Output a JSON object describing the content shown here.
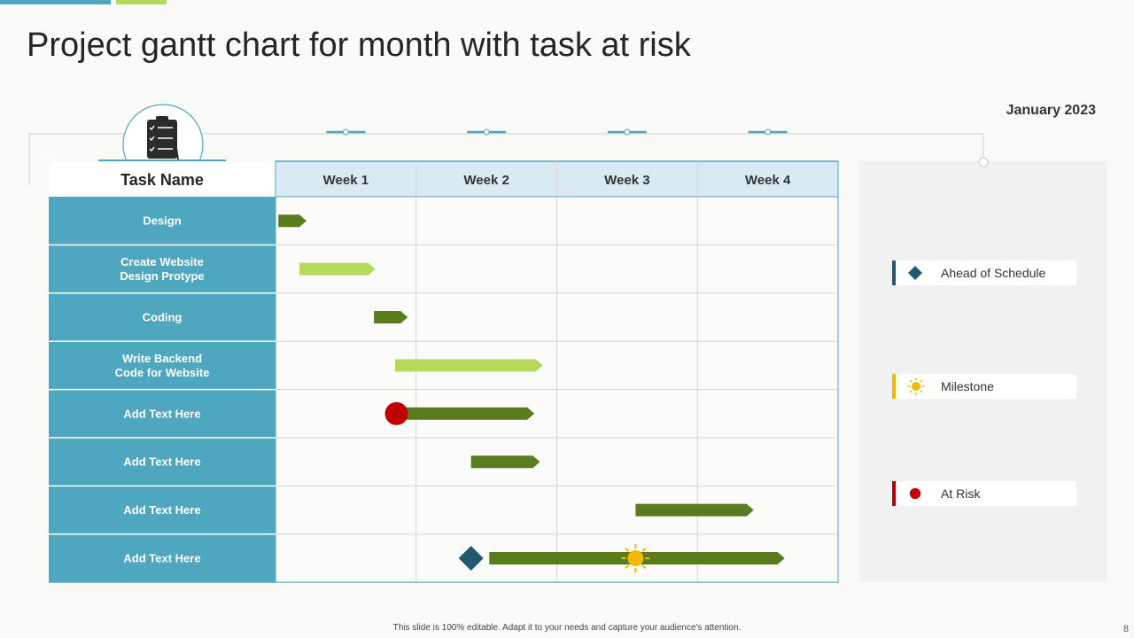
{
  "title": "Project gantt chart for month with task at risk",
  "month_label": "January 2023",
  "footer_note": "This slide is 100% editable. Adapt it to your needs and capture your audience's attention.",
  "page_number": "8",
  "colors": {
    "accent_blue": "#4fa6bf",
    "header_blue": "#d9eaf2",
    "bar_dark": "#5b7b1f",
    "bar_light": "#b5d95a",
    "ahead": "#215a6e",
    "milestone": "#f5b800",
    "risk": "#c00000"
  },
  "icons": {
    "header": "clipboard-checklist-icon",
    "ahead": "diamond-icon",
    "milestone": "sun-icon",
    "risk": "circle-icon"
  },
  "legend": {
    "ahead": "Ahead of Schedule",
    "milestone": "Milestone",
    "risk": "At Risk"
  },
  "chart_data": {
    "type": "gantt",
    "title": "Project gantt chart for month with task at risk",
    "task_header": "Task Name",
    "columns": [
      "Week 1",
      "Week 2",
      "Week 3",
      "Week 4"
    ],
    "x_range_weeks": [
      0,
      4
    ],
    "tasks": [
      {
        "name": "Design",
        "start": 0.02,
        "end": 0.22,
        "color": "dark",
        "markers": []
      },
      {
        "name": "Create Website\nDesign Protype",
        "start": 0.17,
        "end": 0.71,
        "color": "light",
        "markers": []
      },
      {
        "name": "Coding",
        "start": 0.7,
        "end": 0.94,
        "color": "dark",
        "markers": []
      },
      {
        "name": "Write Backend\nCode for Website",
        "start": 0.85,
        "end": 1.9,
        "color": "light",
        "markers": []
      },
      {
        "name": "Add Text Here",
        "start": 0.86,
        "end": 1.84,
        "color": "dark",
        "markers": [
          {
            "type": "risk",
            "at": 0.86
          }
        ]
      },
      {
        "name": "Add Text Here",
        "start": 1.39,
        "end": 1.88,
        "color": "dark",
        "markers": []
      },
      {
        "name": "Add Text Here",
        "start": 2.56,
        "end": 3.4,
        "color": "dark",
        "markers": []
      },
      {
        "name": "Add Text Here",
        "start": 1.52,
        "end": 3.62,
        "color": "dark",
        "markers": [
          {
            "type": "ahead",
            "at": 1.39
          },
          {
            "type": "milestone",
            "at": 2.56
          }
        ]
      }
    ]
  }
}
